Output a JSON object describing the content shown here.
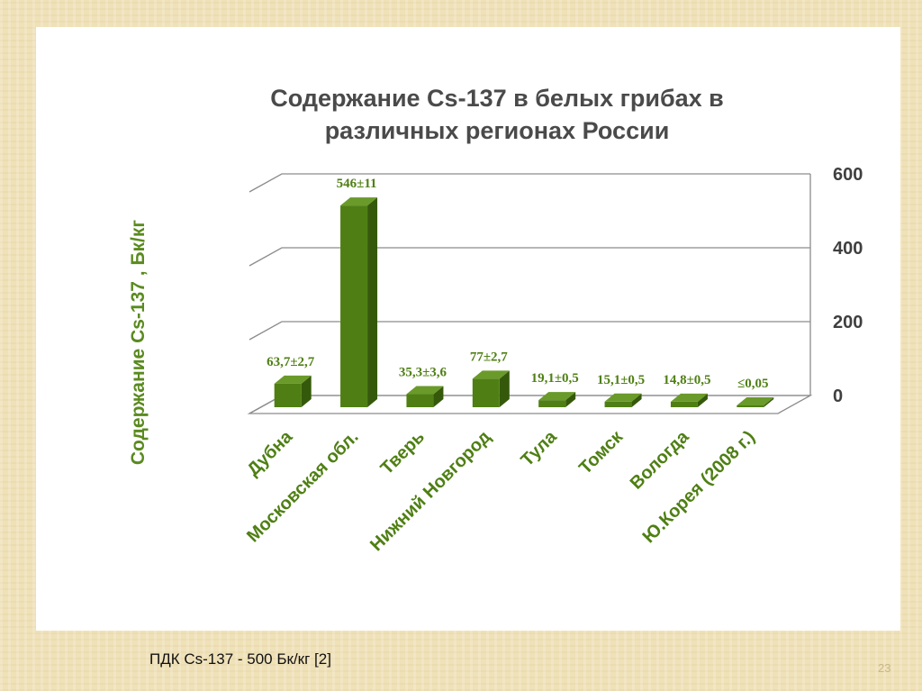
{
  "slide": {
    "footnote": "ПДК Cs-137  - 500 Бк/кг [2]",
    "page_number": "23"
  },
  "colors": {
    "bar_front": "#4f7f14",
    "bar_top": "#6a9a2a",
    "bar_side": "#35590b",
    "title": "#4a4a4a",
    "axis_title": "#5a8a1e",
    "ticks": "#3f3f3f",
    "category_labels": "#4f7f14",
    "data_labels": "#4f7f14",
    "gridlines": "#8c8c8c"
  },
  "chart_data": {
    "type": "bar",
    "style": "3d-clustered-column",
    "title_lines": [
      "Содержание Cs-137 в белых грибах в",
      "различных регионах России"
    ],
    "ylabel": "Содержание Cs-137 , Бк/кг",
    "xlabel": "",
    "y_axis_position": "right",
    "ylim": [
      0,
      600
    ],
    "y_ticks": [
      "0",
      "200",
      "400",
      "600"
    ],
    "grid": true,
    "legend": "none",
    "categories": [
      "Дубна",
      "Московская обл.",
      "Тверь",
      "Нижний Новгород",
      "Тула",
      "Томск",
      "Вологда",
      "Ю.Корея (2008 г.)"
    ],
    "values": [
      63.7,
      546,
      35.3,
      77,
      19.1,
      15.1,
      14.8,
      0.05
    ],
    "data_labels": [
      "63,7±2,7",
      "546±11",
      "35,3±3,6",
      "77±2,7",
      "19,1±0,5",
      "15,1±0,5",
      "14,8±0,5",
      "≤0,05"
    ]
  }
}
